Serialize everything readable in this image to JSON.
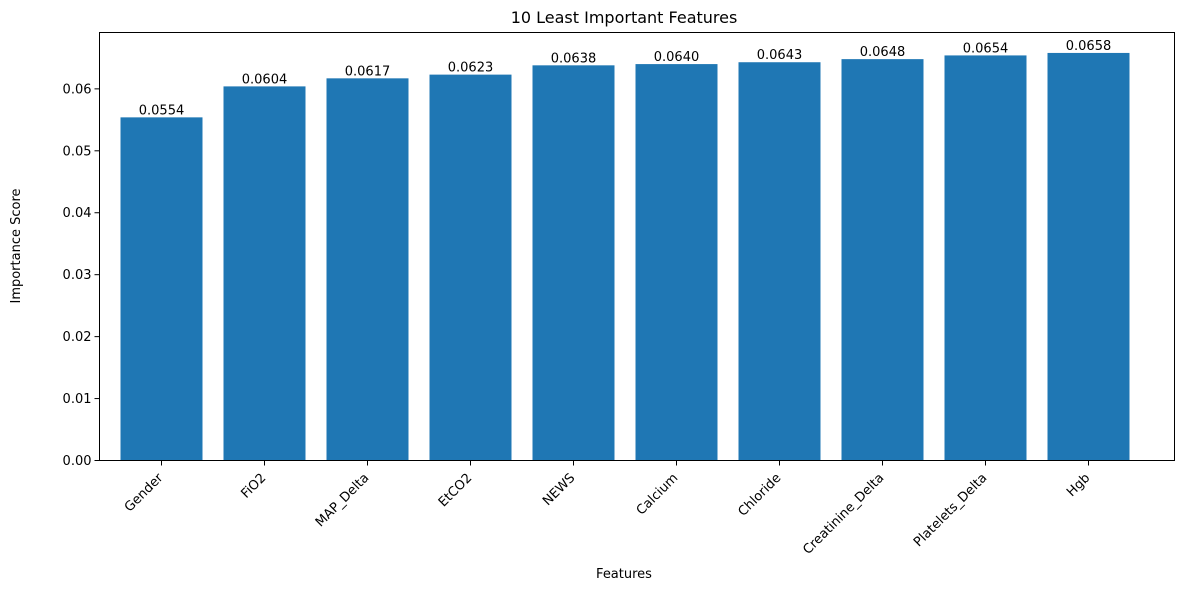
{
  "chart_data": {
    "type": "bar",
    "title": "10 Least Important Features",
    "xlabel": "Features",
    "ylabel": "Importance Score",
    "categories": [
      "Gender",
      "FiO2",
      "MAP_Delta",
      "EtCO2",
      "NEWS",
      "Calcium",
      "Chloride",
      "Creatinine_Delta",
      "Platelets_Delta",
      "Hgb"
    ],
    "values": [
      0.0554,
      0.0604,
      0.0617,
      0.0623,
      0.0638,
      0.064,
      0.0643,
      0.0648,
      0.0654,
      0.0658
    ],
    "value_labels": [
      "0.0554",
      "0.0604",
      "0.0617",
      "0.0623",
      "0.0638",
      "0.0640",
      "0.0643",
      "0.0648",
      "0.0654",
      "0.0658"
    ],
    "yticks": [
      0.0,
      0.01,
      0.02,
      0.03,
      0.04,
      0.05,
      0.06
    ],
    "ytick_labels": [
      "0.00",
      "0.01",
      "0.02",
      "0.03",
      "0.04",
      "0.05",
      "0.06"
    ],
    "ylim": [
      0,
      0.0691
    ],
    "grid": false,
    "bar_color": "#1f77b4"
  }
}
